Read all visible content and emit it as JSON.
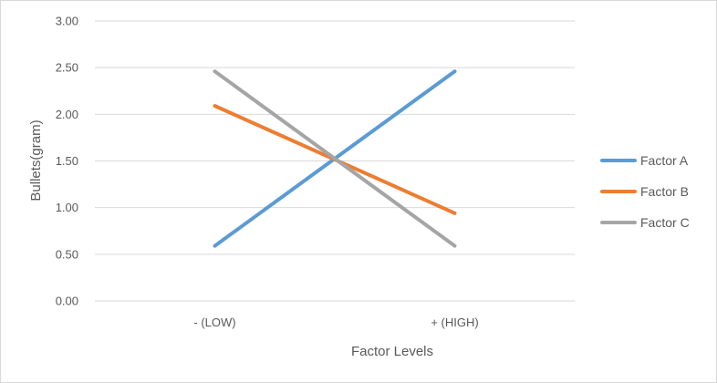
{
  "chart_data": {
    "type": "line",
    "categories": [
      "- (LOW)",
      "+ (HIGH)"
    ],
    "series": [
      {
        "name": "Factor A",
        "values": [
          0.59,
          2.46
        ],
        "color": "#5b9bd5"
      },
      {
        "name": "Factor B",
        "values": [
          2.09,
          0.94
        ],
        "color": "#ed7d31"
      },
      {
        "name": "Factor C",
        "values": [
          2.46,
          0.59
        ],
        "color": "#a5a5a5"
      }
    ],
    "title": "",
    "xlabel": "Factor Levels",
    "ylabel": "Bullets(gram)",
    "ylim": [
      0,
      3
    ],
    "yticks": [
      "0.00",
      "0.50",
      "1.00",
      "1.50",
      "2.00",
      "2.50",
      "3.00"
    ],
    "grid": true,
    "legend_position": "right"
  }
}
